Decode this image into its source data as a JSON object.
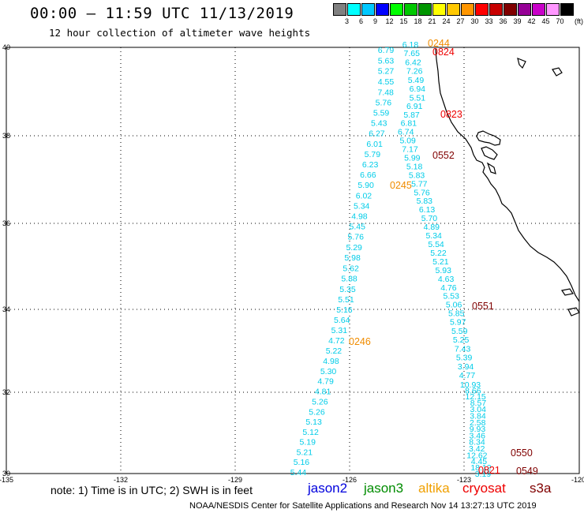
{
  "header": {
    "title": "00:00 – 11:59 UTC 11/13/2019",
    "subtitle": "12 hour collection of altimeter wave heights"
  },
  "colorbar": {
    "colors": [
      "#808080",
      "#00ffff",
      "#00c8ff",
      "#0000ff",
      "#00ff00",
      "#00c800",
      "#009600",
      "#ffff00",
      "#ffc800",
      "#ff9600",
      "#ff0000",
      "#c80000",
      "#800000",
      "#960096",
      "#c800c8",
      "#ff96ff",
      "#000000"
    ],
    "labels": [
      "3",
      "6",
      "9",
      "12",
      "15",
      "18",
      "21",
      "24",
      "27",
      "30",
      "33",
      "36",
      "39",
      "42",
      "45",
      "70"
    ],
    "unit": "(ft)"
  },
  "map": {
    "lon_ticks": [
      "-135",
      "-132",
      "-129",
      "-126",
      "-123",
      "-120"
    ],
    "lat_ticks": [
      "40",
      "38",
      "36",
      "34",
      "32",
      "30"
    ]
  },
  "tracks": [
    {
      "color": "#00cce8",
      "values": [
        "6.79",
        "5.63",
        "5.27",
        "4.55",
        "7.48",
        "5.76",
        "5.59",
        "5.43",
        "6.27",
        "6.01",
        "5.79",
        "6.23",
        "6.66",
        "5.90",
        "6.02",
        "5.34",
        "4.98",
        "5.45",
        "5.76",
        "5.29",
        "5.98",
        "5.62",
        "5.88",
        "5.35",
        "5.51",
        "5.16",
        "5.64",
        "5.31",
        "4.72",
        "5.22",
        "4.98",
        "5.30",
        "4.79",
        "4.81",
        "5.26",
        "5.26",
        "5.13",
        "5.12",
        "5.19",
        "5.21",
        "5.16",
        "5.44"
      ]
    },
    {
      "color": "#00cce8",
      "values": [
        "6.18",
        "7.65",
        "6.42",
        "7.26",
        "5.49",
        "6.94",
        "5.51",
        "6.91",
        "5.87",
        "6.81",
        "6.74",
        "5.09",
        "7.17",
        "5.99",
        "5.18",
        "5.83",
        "5.77",
        "5.76",
        "5.83",
        "6.13",
        "5.70",
        "4.89",
        "5.34",
        "5.54",
        "5.22",
        "5.21",
        "5.93",
        "4.63",
        "4.76",
        "5.53",
        "5.06",
        "5.85",
        "5.97",
        "5.59",
        "5.25",
        "7.43",
        "5.39",
        "3.94",
        "4.77"
      ]
    },
    {
      "color": "#00cce8",
      "values": [
        "10.93",
        "8.66",
        "12.15",
        "8.57",
        "3.04",
        "3.84",
        "2.58",
        "9.93",
        "3.46",
        "8.34",
        "3.42",
        "12.62",
        "4.45",
        "18.12",
        "3.19"
      ]
    }
  ],
  "time_labels": [
    {
      "text": "0244",
      "color": "#f08c00"
    },
    {
      "text": "0824",
      "color": "#ee0000"
    },
    {
      "text": "0823",
      "color": "#ee0000"
    },
    {
      "text": "0552",
      "color": "#800000"
    },
    {
      "text": "0245",
      "color": "#f08c00"
    },
    {
      "text": "0551",
      "color": "#800000"
    },
    {
      "text": "0246",
      "color": "#f08c00"
    },
    {
      "text": "0550",
      "color": "#800000"
    },
    {
      "text": "0821",
      "color": "#ee0000"
    },
    {
      "text": "0549",
      "color": "#800000"
    }
  ],
  "note": "note: 1) Time is in UTC; 2) SWH is in feet",
  "satellites": [
    {
      "name": "jason2",
      "color": "#0000dd"
    },
    {
      "name": "jason3",
      "color": "#008c00"
    },
    {
      "name": "altika",
      "color": "#f0a000"
    },
    {
      "name": "cryosat",
      "color": "#ee0000"
    },
    {
      "name": "s3a",
      "color": "#800000"
    }
  ],
  "footer": "NOAA/NESDIS Center for Satellite Applications and Research    Nov 14 13:27:13 UTC 2019"
}
